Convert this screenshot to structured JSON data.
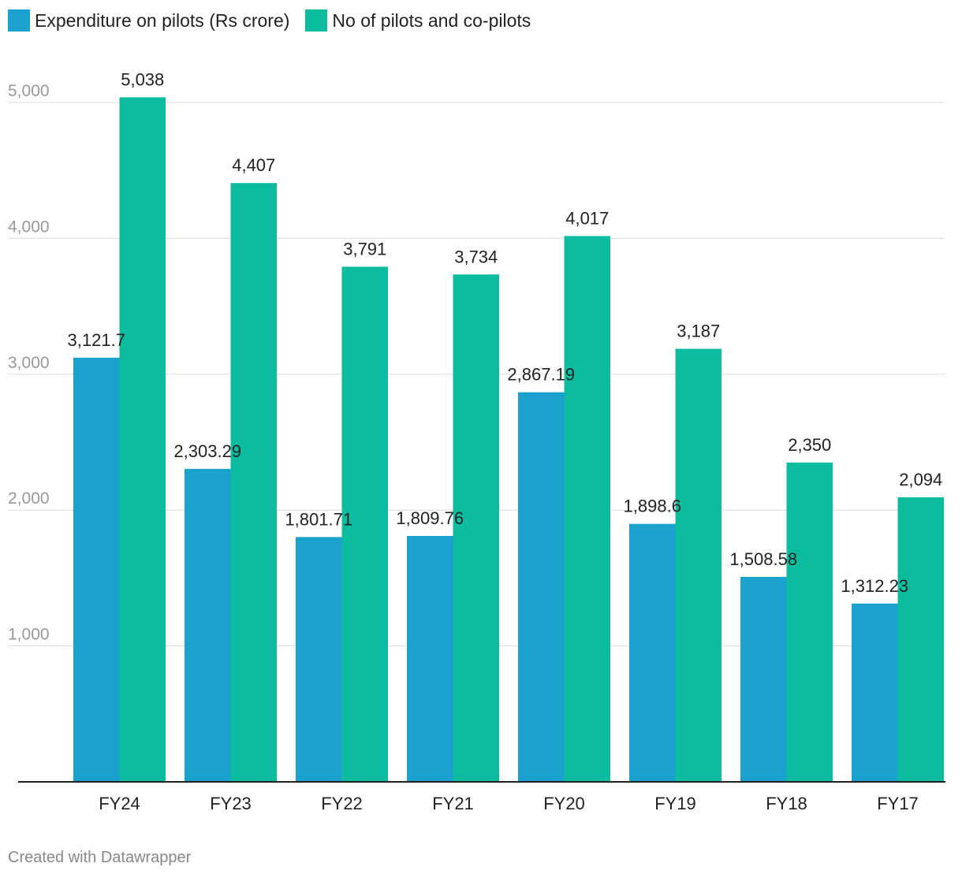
{
  "legend": {
    "series1": "Expenditure on pilots (Rs crore)",
    "series2": "No of pilots and co-pilots"
  },
  "footer": "Created with Datawrapper",
  "colors": {
    "series1": "#1ba1cd",
    "series2": "#0bbd9e",
    "grid": "#dddddd",
    "axis": "#222222",
    "tick_label": "#999999"
  },
  "chart_data": {
    "type": "bar",
    "title": "",
    "xlabel": "",
    "ylabel": "",
    "ylim": [
      0,
      5000
    ],
    "yticks": [
      {
        "value": 1000,
        "label": "1,000"
      },
      {
        "value": 2000,
        "label": "2,000"
      },
      {
        "value": 3000,
        "label": "3,000"
      },
      {
        "value": 4000,
        "label": "4,000"
      },
      {
        "value": 5000,
        "label": "5,000"
      }
    ],
    "categories": [
      "FY24",
      "FY23",
      "FY22",
      "FY21",
      "FY20",
      "FY19",
      "FY18",
      "FY17"
    ],
    "series": [
      {
        "name": "Expenditure on pilots (Rs crore)",
        "values": [
          3121.7,
          2303.29,
          1801.71,
          1809.76,
          2867.19,
          1898.6,
          1508.58,
          1312.23
        ],
        "labels": [
          "3,121.7",
          "2,303.29",
          "1,801.71",
          "1,809.76",
          "2,867.19",
          "1,898.6",
          "1,508.58",
          "1,312.23"
        ]
      },
      {
        "name": "No of pilots and co-pilots",
        "values": [
          5038,
          4407,
          3791,
          3734,
          4017,
          3187,
          2350,
          2094
        ],
        "labels": [
          "5,038",
          "4,407",
          "3,791",
          "3,734",
          "4,017",
          "3,187",
          "2,350",
          "2,094"
        ]
      }
    ]
  }
}
